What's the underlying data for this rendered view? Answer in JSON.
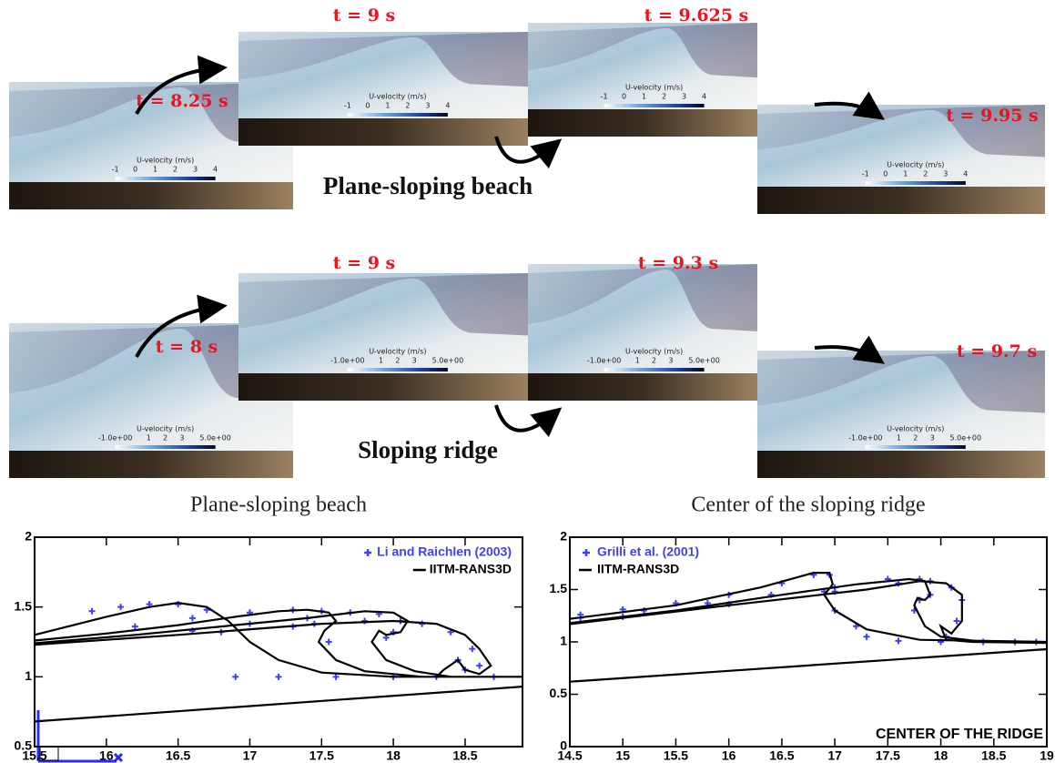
{
  "panels": {
    "rows": [
      {
        "caption": "Plane-sloping beach",
        "frames": [
          {
            "time": "t = 8.25 s",
            "colorbar": {
              "title": "U-velocity (m/s)",
              "ticks": [
                -1,
                0,
                1,
                2,
                3,
                4
              ]
            }
          },
          {
            "time": "t = 9 s",
            "colorbar": {
              "title": "U-velocity (m/s)",
              "ticks": [
                -1,
                0,
                1,
                2,
                3,
                4
              ]
            }
          },
          {
            "time": "t = 9.625 s",
            "colorbar": {
              "title": "U-velocity (m/s)",
              "ticks": [
                -1,
                0,
                1,
                2,
                3,
                4
              ]
            }
          },
          {
            "time": "t = 9.95 s",
            "colorbar": {
              "title": "U-velocity (m/s)",
              "ticks": [
                -1,
                0,
                1,
                2,
                3,
                4
              ]
            }
          }
        ]
      },
      {
        "caption": "Sloping ridge",
        "frames": [
          {
            "time": "t = 8 s",
            "colorbar": {
              "title": "U-velocity (m/s)",
              "ticks": [
                {
                  "value": -1,
                  "label": "-1.0e+00"
                },
                1,
                2,
                3,
                {
                  "value": 5,
                  "label": "5.0e+00"
                }
              ]
            }
          },
          {
            "time": "t = 9 s",
            "colorbar": {
              "title": "U-velocity (m/s)",
              "ticks": [
                {
                  "value": -1,
                  "label": "-1.0e+00"
                },
                1,
                2,
                3,
                {
                  "value": 5,
                  "label": "5.0e+00"
                }
              ]
            }
          },
          {
            "time": "t = 9.3 s",
            "colorbar": {
              "title": "U-velocity (m/s)",
              "ticks": [
                {
                  "value": -1,
                  "label": "-1.0e+00"
                },
                1,
                2,
                3,
                {
                  "value": 5,
                  "label": "5.0e+00"
                }
              ]
            }
          },
          {
            "time": "t = 9.7 s",
            "colorbar": {
              "title": "U-velocity (m/s)",
              "ticks": [
                {
                  "value": -1,
                  "label": "-1.0e+00"
                },
                1,
                2,
                3,
                {
                  "value": 5,
                  "label": "5.0e+00"
                }
              ]
            }
          }
        ]
      }
    ]
  },
  "chart_data": [
    {
      "type": "line",
      "title": "Plane-sloping beach",
      "legend": "upper right",
      "xlim": [
        15.5,
        18.9
      ],
      "ylim": [
        0.5,
        2
      ],
      "xticks": [
        15.5,
        16,
        16.5,
        17,
        17.5,
        18,
        18.5
      ],
      "yticks": [
        0.5,
        1,
        1.5,
        2
      ],
      "series": [
        {
          "name": "Li and Raichlen (2003)",
          "type": "scatter",
          "color": "#3f3ff5",
          "x": [
            15.9,
            16.1,
            16.3,
            16.5,
            16.7,
            16.2,
            16.6,
            17.0,
            17.3,
            17.5,
            16.6,
            17.0,
            17.4,
            17.7,
            17.9,
            18.05,
            18.0,
            16.8,
            17.3,
            17.8,
            18.2,
            18.4,
            18.55,
            18.6,
            18.5,
            16.9,
            17.2,
            17.6,
            18.0,
            18.3,
            18.7,
            17.45,
            17.55,
            17.95,
            18.45
          ],
          "values": [
            1.47,
            1.5,
            1.52,
            1.52,
            1.48,
            1.36,
            1.42,
            1.46,
            1.48,
            1.47,
            1.33,
            1.38,
            1.42,
            1.46,
            1.45,
            1.4,
            1.32,
            1.32,
            1.36,
            1.4,
            1.38,
            1.32,
            1.2,
            1.08,
            1.05,
            1.0,
            1.0,
            1.0,
            1.0,
            1.0,
            1.0,
            1.38,
            1.25,
            1.28,
            1.12
          ]
        },
        {
          "name": "IITM-RANS3D",
          "type": "line",
          "color": "#000000",
          "x": [
            15.5,
            16.0,
            16.3,
            16.5,
            16.7,
            16.85,
            17.0,
            17.2,
            17.5,
            18.0,
            18.9,
            null,
            15.5,
            16.0,
            16.5,
            16.9,
            17.2,
            17.4,
            17.55,
            17.6,
            17.52,
            17.48,
            17.6,
            17.8,
            18.2,
            18.9,
            null,
            15.5,
            16.2,
            16.8,
            17.4,
            17.8,
            18.0,
            18.1,
            18.05,
            17.95,
            17.9,
            17.85,
            17.95,
            18.15,
            18.4,
            18.9,
            null,
            15.5,
            16.5,
            17.5,
            18.0,
            18.3,
            18.5,
            18.6,
            18.68,
            18.6,
            18.5,
            18.45,
            18.35,
            18.3,
            18.9,
            null,
            15.5,
            18.9
          ],
          "values": [
            1.3,
            1.43,
            1.5,
            1.53,
            1.5,
            1.4,
            1.25,
            1.12,
            1.03,
            1.0,
            1.0,
            null,
            1.26,
            1.31,
            1.37,
            1.43,
            1.47,
            1.48,
            1.46,
            1.4,
            1.33,
            1.25,
            1.12,
            1.04,
            1.0,
            1.0,
            null,
            1.24,
            1.3,
            1.36,
            1.42,
            1.47,
            1.46,
            1.4,
            1.32,
            1.3,
            1.33,
            1.25,
            1.12,
            1.04,
            1.0,
            1.0,
            null,
            1.23,
            1.3,
            1.38,
            1.4,
            1.38,
            1.3,
            1.2,
            1.08,
            1.02,
            1.05,
            1.12,
            1.05,
            1.0,
            1.0,
            null,
            0.68,
            0.93
          ]
        }
      ]
    },
    {
      "type": "line",
      "title": "Center of the sloping ridge",
      "legend": "upper left",
      "annotation": "CENTER OF THE RIDGE",
      "xlim": [
        14.5,
        19
      ],
      "ylim": [
        0,
        2
      ],
      "xticks": [
        14.5,
        15,
        15.5,
        16,
        16.5,
        17,
        17.5,
        18,
        18.5,
        19
      ],
      "yticks": [
        0,
        0.5,
        1,
        1.5,
        2
      ],
      "series": [
        {
          "name": "Grilli et al. (2001)",
          "type": "scatter",
          "color": "#3f3ff5",
          "x": [
            14.6,
            15.0,
            15.5,
            16.0,
            16.5,
            16.8,
            16.95,
            16.9,
            17.0,
            17.2,
            14.6,
            15.2,
            15.8,
            16.4,
            17.0,
            17.5,
            17.8,
            17.9,
            17.8,
            17.75,
            15.0,
            16.0,
            17.0,
            17.6,
            17.9,
            18.1,
            18.2,
            18.15,
            18.05,
            17.3,
            17.6,
            18.0,
            18.4,
            18.7,
            18.9
          ],
          "values": [
            1.26,
            1.31,
            1.37,
            1.45,
            1.56,
            1.64,
            1.64,
            1.48,
            1.3,
            1.15,
            1.23,
            1.3,
            1.37,
            1.45,
            1.52,
            1.6,
            1.6,
            1.45,
            1.4,
            1.3,
            1.24,
            1.36,
            1.48,
            1.56,
            1.58,
            1.52,
            1.4,
            1.2,
            1.05,
            1.05,
            1.01,
            1.0,
            1.0,
            1.0,
            1.0
          ]
        },
        {
          "name": "IITM-RANS3D",
          "type": "line",
          "color": "#000000",
          "x": [
            14.5,
            15.5,
            16.3,
            16.8,
            16.95,
            16.98,
            16.9,
            17.0,
            17.3,
            17.8,
            19,
            null,
            14.5,
            15.5,
            16.5,
            17.2,
            17.7,
            17.85,
            17.9,
            17.85,
            17.78,
            17.75,
            17.85,
            18.0,
            18.4,
            19,
            null,
            14.5,
            16,
            17.3,
            17.8,
            18.05,
            18.2,
            18.2,
            18.1,
            18.0,
            18.05,
            18.3,
            19,
            null,
            14.5,
            19
          ],
          "values": [
            1.22,
            1.35,
            1.52,
            1.66,
            1.66,
            1.55,
            1.45,
            1.3,
            1.12,
            1.02,
            1.0,
            null,
            1.18,
            1.3,
            1.45,
            1.55,
            1.6,
            1.58,
            1.45,
            1.4,
            1.42,
            1.35,
            1.15,
            1.05,
            1.0,
            0.99,
            null,
            1.17,
            1.35,
            1.5,
            1.58,
            1.56,
            1.45,
            1.2,
            1.08,
            1.15,
            1.02,
            1.0,
            0.99,
            null,
            0.62,
            0.93
          ]
        }
      ]
    }
  ]
}
